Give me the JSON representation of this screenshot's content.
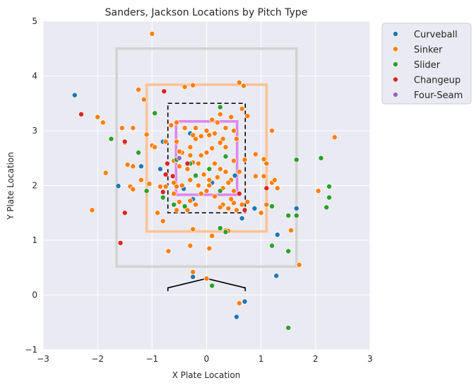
{
  "chart_data": {
    "type": "scatter",
    "title": "Sanders, Jackson Locations by Pitch Type",
    "xlabel": "X Plate Location",
    "ylabel": "Y Plate Location",
    "xlim": [
      -3,
      3
    ],
    "ylim": [
      -1,
      5
    ],
    "xticks": [
      "−3",
      "−2",
      "−1",
      "0",
      "1",
      "2",
      "3"
    ],
    "yticks": [
      "−1",
      "0",
      "1",
      "2",
      "3",
      "4",
      "5"
    ],
    "grid": true,
    "legend_position": "outside-top-right",
    "zones": [
      {
        "color": "#d3d3d3",
        "x": [
          -1.65,
          1.65
        ],
        "y": [
          0.52,
          4.5
        ]
      },
      {
        "color": "#ffc396",
        "x": [
          -1.1,
          1.1
        ],
        "y": [
          1.16,
          3.84
        ]
      },
      {
        "color": "#000000",
        "style": "dashed",
        "x": [
          -0.71,
          0.71
        ],
        "y": [
          1.5,
          3.5
        ]
      },
      {
        "color": "#dd88ee",
        "x": [
          -0.56,
          0.56
        ],
        "y": [
          1.83,
          3.17
        ]
      }
    ],
    "home_plate": [
      [
        -0.71,
        0.07
      ],
      [
        -0.71,
        0.13
      ],
      [
        0,
        0.3
      ],
      [
        0.71,
        0.13
      ],
      [
        0.71,
        0.07
      ]
    ],
    "series": [
      {
        "name": "Curveball",
        "color": "#1f77b4",
        "points": [
          [
            -2.42,
            3.65
          ],
          [
            -1.62,
            1.99
          ],
          [
            -0.42,
            1.94
          ],
          [
            -0.25,
            1.75
          ],
          [
            -0.25,
            0.33
          ],
          [
            0.52,
            2.18
          ],
          [
            0.65,
            1.4
          ],
          [
            0.88,
            1.58
          ],
          [
            1.3,
            1.1
          ],
          [
            1.28,
            0.35
          ],
          [
            0.7,
            -0.12
          ],
          [
            0.55,
            -0.4
          ],
          [
            1.65,
            1.58
          ],
          [
            -0.85,
            2.3
          ],
          [
            -0.8,
            2.8
          ],
          [
            -1.2,
            2.35
          ],
          [
            0.1,
            2.05
          ],
          [
            0.3,
            1.95
          ],
          [
            -0.3,
            2.95
          ]
        ]
      },
      {
        "name": "Sinker",
        "color": "#ff7f0e",
        "points": [
          [
            -1.0,
            4.77
          ],
          [
            -1.25,
            3.75
          ],
          [
            -0.4,
            3.8
          ],
          [
            -0.25,
            3.83
          ],
          [
            0.6,
            3.88
          ],
          [
            0.68,
            3.82
          ],
          [
            -1.15,
            3.57
          ],
          [
            -2.0,
            3.25
          ],
          [
            -1.9,
            3.15
          ],
          [
            -1.55,
            3.05
          ],
          [
            -1.35,
            3.05
          ],
          [
            -1.1,
            2.93
          ],
          [
            -1.5,
            2.78
          ],
          [
            -1.0,
            2.73
          ],
          [
            -0.95,
            2.7
          ],
          [
            -1.45,
            2.38
          ],
          [
            -1.35,
            2.35
          ],
          [
            -1.85,
            2.23
          ],
          [
            -1.2,
            2.1
          ],
          [
            -1.05,
            2.03
          ],
          [
            -1.4,
            1.98
          ],
          [
            -1.35,
            1.93
          ],
          [
            -0.85,
            1.98
          ],
          [
            -0.75,
            1.98
          ],
          [
            -0.55,
            1.98
          ],
          [
            -0.9,
            1.5
          ],
          [
            -0.8,
            1.35
          ],
          [
            -0.7,
            0.8
          ],
          [
            -0.25,
            0.42
          ],
          [
            -0.3,
            0.9
          ],
          [
            -0.25,
            1.2
          ],
          [
            0.05,
            0.85
          ],
          [
            0.1,
            1.08
          ],
          [
            0.35,
            1.18
          ],
          [
            0.4,
            1.17
          ],
          [
            -2.1,
            1.55
          ],
          [
            0.0,
            0.3
          ],
          [
            0.6,
            -0.15
          ],
          [
            1.55,
            1.18
          ],
          [
            1.7,
            0.55
          ],
          [
            2.35,
            2.88
          ],
          [
            2.05,
            1.9
          ],
          [
            1.3,
            1.95
          ],
          [
            1.2,
            2.05
          ],
          [
            1.25,
            2.1
          ],
          [
            1.1,
            2.4
          ],
          [
            1.05,
            2.48
          ],
          [
            1.05,
            2.17
          ],
          [
            0.9,
            2.17
          ],
          [
            0.9,
            2.57
          ],
          [
            0.7,
            2.47
          ],
          [
            0.75,
            3.27
          ],
          [
            0.65,
            3.4
          ],
          [
            1.2,
            3.0
          ],
          [
            1.0,
            1.5
          ],
          [
            1.1,
            1.65
          ],
          [
            0.75,
            1.7
          ],
          [
            0.65,
            1.65
          ],
          [
            0.7,
            1.55
          ],
          [
            0.4,
            1.58
          ],
          [
            0.3,
            1.65
          ],
          [
            0.5,
            1.68
          ],
          [
            0.6,
            1.85
          ],
          [
            0.5,
            1.9
          ],
          [
            0.45,
            2.1
          ],
          [
            0.35,
            2.25
          ],
          [
            0.25,
            2.3
          ],
          [
            0.15,
            2.4
          ],
          [
            0.05,
            2.3
          ],
          [
            -0.05,
            2.2
          ],
          [
            -0.15,
            2.4
          ],
          [
            -0.25,
            2.42
          ],
          [
            -0.35,
            2.3
          ],
          [
            -0.5,
            2.35
          ],
          [
            -0.6,
            2.45
          ],
          [
            -0.45,
            2.6
          ],
          [
            -0.3,
            2.7
          ],
          [
            -0.2,
            2.85
          ],
          [
            -0.1,
            2.9
          ],
          [
            0.0,
            3.0
          ],
          [
            0.1,
            3.2
          ],
          [
            0.25,
            3.3
          ],
          [
            0.35,
            3.05
          ],
          [
            0.5,
            3.0
          ],
          [
            0.55,
            2.85
          ],
          [
            0.3,
            2.85
          ],
          [
            0.25,
            2.78
          ],
          [
            0.1,
            2.68
          ],
          [
            0.0,
            2.6
          ],
          [
            -0.1,
            2.55
          ],
          [
            -0.3,
            2.55
          ],
          [
            -0.5,
            2.62
          ],
          [
            -0.55,
            2.8
          ],
          [
            -0.65,
            3.1
          ],
          [
            -0.55,
            3.15
          ],
          [
            -0.4,
            3.05
          ],
          [
            -0.25,
            2.92
          ],
          [
            0.15,
            2.95
          ],
          [
            0.35,
            2.7
          ],
          [
            0.5,
            2.45
          ],
          [
            0.6,
            2.25
          ],
          [
            0.4,
            2.05
          ],
          [
            0.3,
            1.95
          ],
          [
            0.15,
            1.8
          ],
          [
            0.0,
            1.9
          ],
          [
            -0.15,
            2.0
          ],
          [
            -0.3,
            2.1
          ],
          [
            -0.45,
            2.0
          ],
          [
            -0.6,
            1.85
          ],
          [
            -0.5,
            1.7
          ],
          [
            -0.4,
            1.6
          ],
          [
            -0.3,
            1.72
          ],
          [
            -0.2,
            1.65
          ],
          [
            -0.1,
            1.85
          ],
          [
            0.05,
            2.1
          ],
          [
            0.2,
            2.15
          ],
          [
            0.05,
            2.0
          ],
          [
            -0.75,
            2.8
          ],
          [
            -0.2,
            3.05
          ],
          [
            0.05,
            2.92
          ],
          [
            0.2,
            3.15
          ],
          [
            0.45,
            3.25
          ],
          [
            -0.6,
            2.05
          ],
          [
            -0.55,
            1.55
          ],
          [
            -0.35,
            1.55
          ],
          [
            0.25,
            1.6
          ],
          [
            0.55,
            1.55
          ],
          [
            0.45,
            1.75
          ]
        ]
      },
      {
        "name": "Slider",
        "color": "#2ca02c",
        "points": [
          [
            -1.75,
            2.85
          ],
          [
            -1.25,
            2.6
          ],
          [
            -1.1,
            1.9
          ],
          [
            -0.95,
            3.32
          ],
          [
            -0.8,
            1.78
          ],
          [
            -0.6,
            1.65
          ],
          [
            -0.55,
            2.47
          ],
          [
            -0.4,
            1.62
          ],
          [
            -0.2,
            2.18
          ],
          [
            0.05,
            2.3
          ],
          [
            0.25,
            3.43
          ],
          [
            0.35,
            2.53
          ],
          [
            0.25,
            1.22
          ],
          [
            0.35,
            1.15
          ],
          [
            0.1,
            0.17
          ],
          [
            1.2,
            1.62
          ],
          [
            1.2,
            0.9
          ],
          [
            1.5,
            1.45
          ],
          [
            1.5,
            0.8
          ],
          [
            1.65,
            2.47
          ],
          [
            1.65,
            1.45
          ],
          [
            2.1,
            2.5
          ],
          [
            2.25,
            1.98
          ],
          [
            2.25,
            1.78
          ],
          [
            2.2,
            1.6
          ],
          [
            1.5,
            -0.6
          ],
          [
            0.25,
            1.9
          ],
          [
            -0.3,
            2.4
          ]
        ]
      },
      {
        "name": "Changeup",
        "color": "#d62728",
        "points": [
          [
            -2.3,
            3.3
          ],
          [
            -1.5,
            2.8
          ],
          [
            -1.5,
            1.5
          ],
          [
            -1.58,
            0.95
          ],
          [
            -0.78,
            3.72
          ],
          [
            -0.72,
            2.4
          ],
          [
            -0.8,
            1.88
          ],
          [
            -0.62,
            2.17
          ],
          [
            -0.35,
            2.4
          ],
          [
            1.1,
            1.95
          ],
          [
            0.7,
            1.55
          ],
          [
            0.6,
            1.85
          ],
          [
            -0.75,
            2.2
          ]
        ]
      },
      {
        "name": "Four-Seam",
        "color": "#9467bd",
        "points": [
          [
            -0.5,
            2.5
          ]
        ]
      }
    ]
  }
}
